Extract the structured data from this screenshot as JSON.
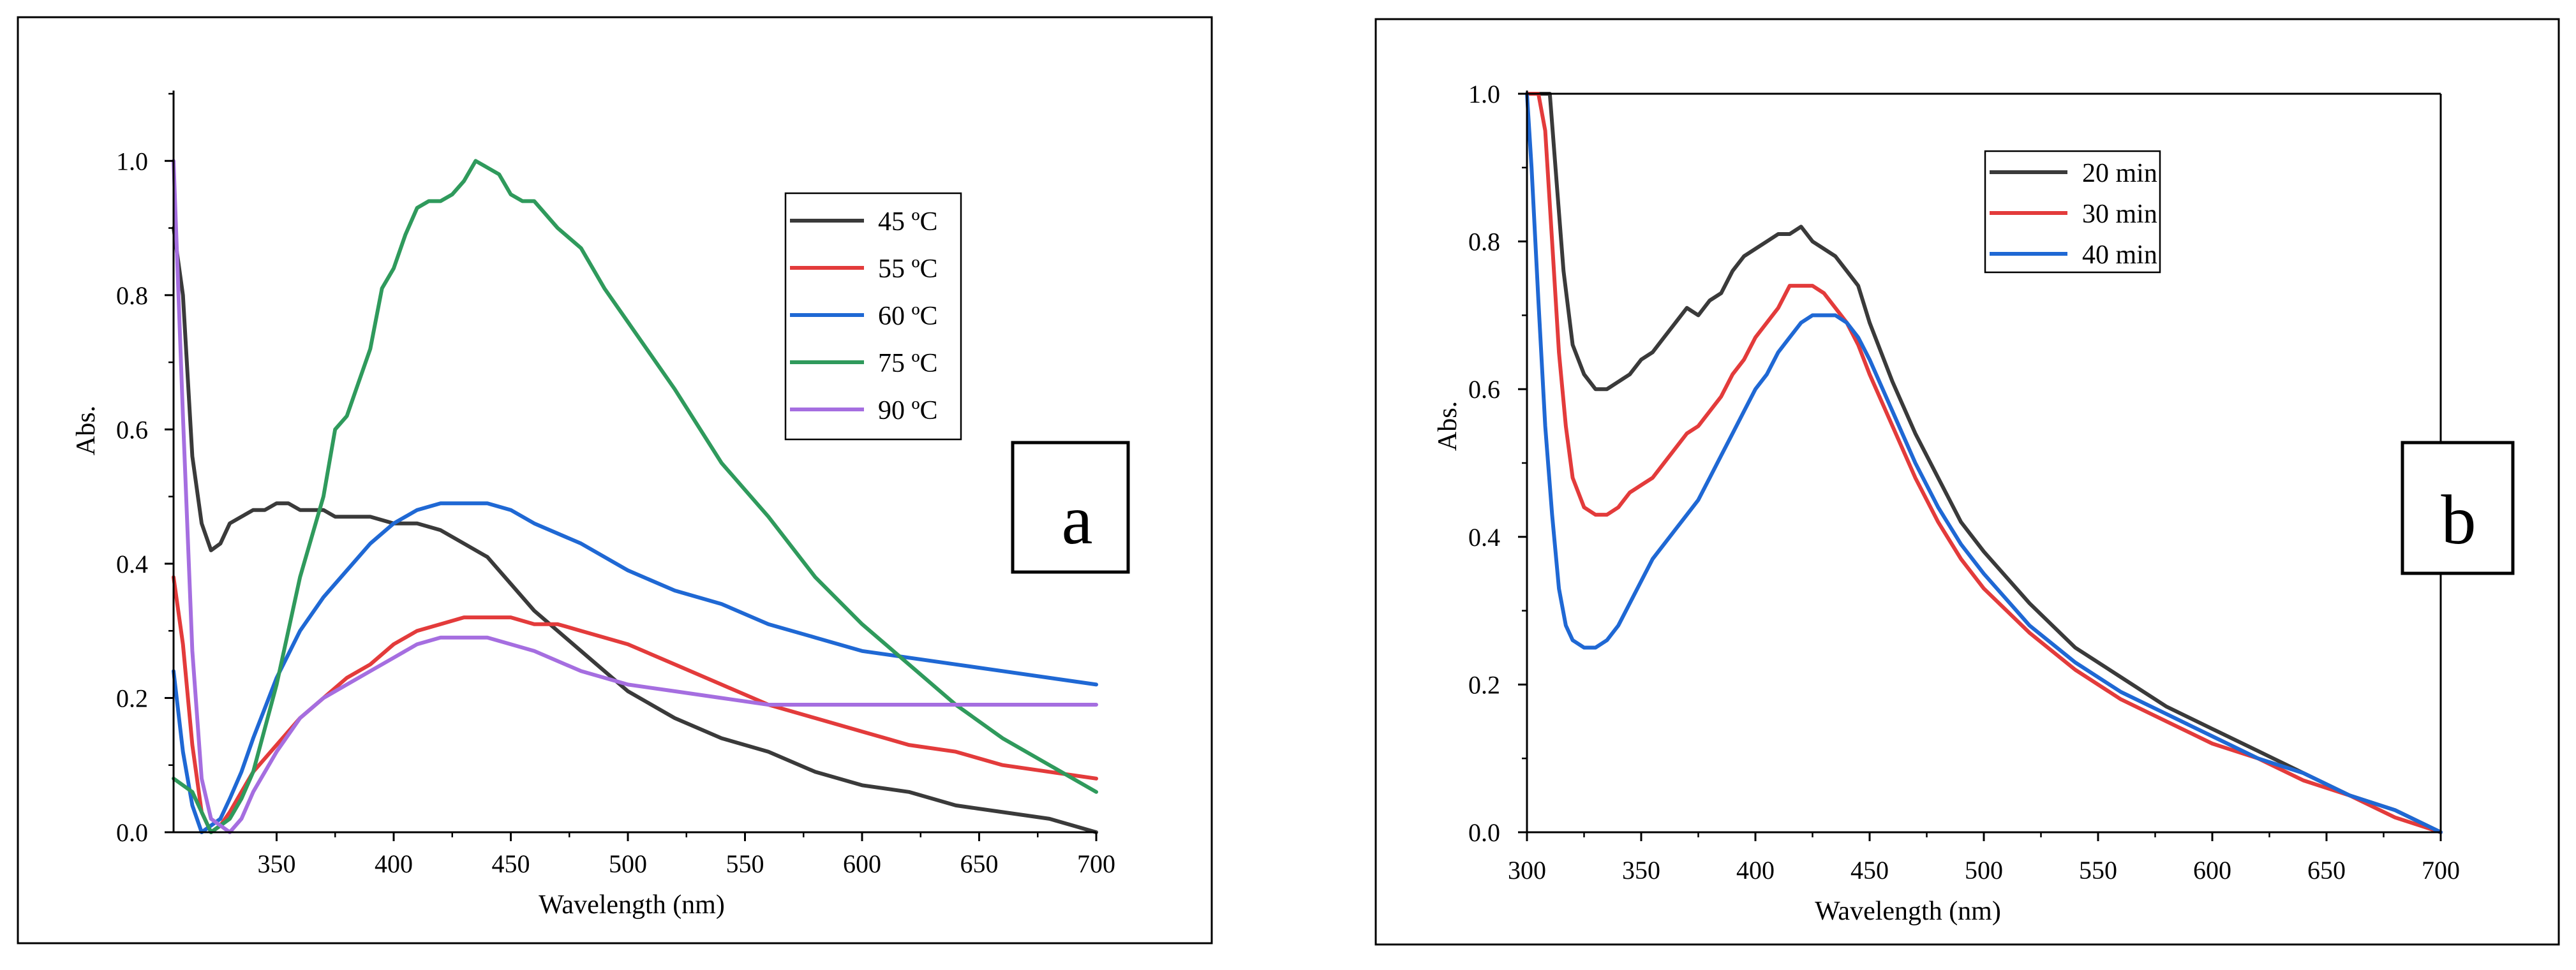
{
  "chart_data": [
    {
      "type": "line",
      "panel_label": "a",
      "xlabel": "Wavelength (nm)",
      "ylabel": "Abs.",
      "xlim": [
        306,
        700
      ],
      "ylim": [
        0,
        1.1
      ],
      "xticks": [
        350,
        400,
        450,
        500,
        550,
        600,
        650,
        700
      ],
      "yticks": [
        0.0,
        0.2,
        0.4,
        0.6,
        0.8,
        1.0
      ],
      "ytick_labels": [
        "0.0",
        "0.2",
        "0.4",
        "0.6",
        "0.8",
        "1.0"
      ],
      "legend_position": "top-right",
      "series": [
        {
          "name": "45 ºC",
          "color": "#3a3a3a",
          "x": [
            306,
            310,
            314,
            318,
            322,
            326,
            330,
            335,
            340,
            345,
            350,
            355,
            360,
            365,
            370,
            375,
            380,
            390,
            400,
            410,
            420,
            430,
            440,
            450,
            460,
            480,
            500,
            520,
            540,
            560,
            580,
            600,
            620,
            640,
            660,
            680,
            700
          ],
          "y": [
            0.9,
            0.8,
            0.56,
            0.46,
            0.42,
            0.43,
            0.46,
            0.47,
            0.48,
            0.48,
            0.49,
            0.49,
            0.48,
            0.48,
            0.48,
            0.47,
            0.47,
            0.47,
            0.46,
            0.46,
            0.45,
            0.43,
            0.41,
            0.37,
            0.33,
            0.27,
            0.21,
            0.17,
            0.14,
            0.12,
            0.09,
            0.07,
            0.06,
            0.04,
            0.03,
            0.02,
            0.0
          ]
        },
        {
          "name": "55 ºC",
          "color": "#e33b3b",
          "x": [
            306,
            310,
            314,
            318,
            322,
            326,
            330,
            335,
            340,
            350,
            360,
            370,
            380,
            390,
            400,
            410,
            420,
            430,
            440,
            450,
            460,
            470,
            480,
            500,
            520,
            540,
            560,
            580,
            600,
            620,
            640,
            660,
            680,
            700
          ],
          "y": [
            0.38,
            0.28,
            0.13,
            0.03,
            0.0,
            0.01,
            0.03,
            0.06,
            0.09,
            0.13,
            0.17,
            0.2,
            0.23,
            0.25,
            0.28,
            0.3,
            0.31,
            0.32,
            0.32,
            0.32,
            0.31,
            0.31,
            0.3,
            0.28,
            0.25,
            0.22,
            0.19,
            0.17,
            0.15,
            0.13,
            0.12,
            0.1,
            0.09,
            0.08
          ]
        },
        {
          "name": "60 ºC",
          "color": "#1f68d4",
          "x": [
            306,
            310,
            314,
            318,
            322,
            326,
            330,
            335,
            340,
            350,
            360,
            370,
            380,
            390,
            400,
            410,
            420,
            430,
            440,
            450,
            460,
            480,
            500,
            520,
            540,
            560,
            580,
            600,
            620,
            640,
            660,
            680,
            700
          ],
          "y": [
            0.24,
            0.12,
            0.04,
            0.0,
            0.01,
            0.02,
            0.05,
            0.09,
            0.14,
            0.23,
            0.3,
            0.35,
            0.39,
            0.43,
            0.46,
            0.48,
            0.49,
            0.49,
            0.49,
            0.48,
            0.46,
            0.43,
            0.39,
            0.36,
            0.34,
            0.31,
            0.29,
            0.27,
            0.26,
            0.25,
            0.24,
            0.23,
            0.22
          ]
        },
        {
          "name": "75 ºC",
          "color": "#2f9a5c",
          "x": [
            306,
            310,
            314,
            318,
            322,
            326,
            330,
            335,
            340,
            350,
            360,
            370,
            375,
            380,
            385,
            390,
            395,
            400,
            405,
            410,
            415,
            420,
            425,
            430,
            435,
            440,
            445,
            450,
            455,
            460,
            470,
            480,
            490,
            500,
            520,
            540,
            560,
            580,
            600,
            620,
            640,
            660,
            680,
            700
          ],
          "y": [
            0.08,
            0.07,
            0.06,
            0.03,
            0.0,
            0.01,
            0.02,
            0.05,
            0.09,
            0.22,
            0.38,
            0.5,
            0.6,
            0.62,
            0.67,
            0.72,
            0.81,
            0.84,
            0.89,
            0.93,
            0.94,
            0.94,
            0.95,
            0.97,
            1.0,
            0.99,
            0.98,
            0.95,
            0.94,
            0.94,
            0.9,
            0.87,
            0.81,
            0.76,
            0.66,
            0.55,
            0.47,
            0.38,
            0.31,
            0.25,
            0.19,
            0.14,
            0.1,
            0.06
          ]
        },
        {
          "name": "90 ºC",
          "color": "#a56ee0",
          "x": [
            306,
            310,
            314,
            318,
            322,
            326,
            330,
            335,
            340,
            350,
            360,
            370,
            380,
            390,
            400,
            410,
            420,
            430,
            440,
            450,
            460,
            480,
            500,
            520,
            540,
            560,
            580,
            600,
            620,
            640,
            660,
            680,
            700
          ],
          "y": [
            1.0,
            0.62,
            0.27,
            0.08,
            0.02,
            0.01,
            0.0,
            0.02,
            0.06,
            0.12,
            0.17,
            0.2,
            0.22,
            0.24,
            0.26,
            0.28,
            0.29,
            0.29,
            0.29,
            0.28,
            0.27,
            0.24,
            0.22,
            0.21,
            0.2,
            0.19,
            0.19,
            0.19,
            0.19,
            0.19,
            0.19,
            0.19,
            0.19
          ]
        }
      ]
    },
    {
      "type": "line",
      "panel_label": "b",
      "xlabel": "Wavelength (nm)",
      "ylabel": "Abs.",
      "xlim": [
        300,
        700
      ],
      "ylim": [
        0,
        1.0
      ],
      "xticks": [
        300,
        350,
        400,
        450,
        500,
        550,
        600,
        650,
        700
      ],
      "yticks": [
        0.0,
        0.2,
        0.4,
        0.6,
        0.8,
        1.0
      ],
      "ytick_labels": [
        "0.0",
        "0.2",
        "0.4",
        "0.6",
        "0.8",
        "1.0"
      ],
      "legend_position": "top-center",
      "series": [
        {
          "name": "20 min",
          "color": "#3a3a3a",
          "x": [
            300,
            305,
            310,
            313,
            316,
            320,
            325,
            330,
            335,
            340,
            345,
            350,
            355,
            360,
            365,
            370,
            375,
            380,
            385,
            390,
            395,
            400,
            405,
            410,
            415,
            420,
            425,
            430,
            435,
            440,
            445,
            450,
            460,
            470,
            480,
            490,
            500,
            520,
            540,
            560,
            580,
            600,
            620,
            640,
            660,
            680,
            700
          ],
          "y": [
            1.0,
            1.0,
            1.0,
            0.88,
            0.76,
            0.66,
            0.62,
            0.6,
            0.6,
            0.61,
            0.62,
            0.64,
            0.65,
            0.67,
            0.69,
            0.71,
            0.7,
            0.72,
            0.73,
            0.76,
            0.78,
            0.79,
            0.8,
            0.81,
            0.81,
            0.82,
            0.8,
            0.79,
            0.78,
            0.76,
            0.74,
            0.69,
            0.61,
            0.54,
            0.48,
            0.42,
            0.38,
            0.31,
            0.25,
            0.21,
            0.17,
            0.14,
            0.11,
            0.08,
            0.05,
            0.03,
            0.0
          ]
        },
        {
          "name": "30 min",
          "color": "#e33b3b",
          "x": [
            300,
            305,
            308,
            311,
            314,
            317,
            320,
            325,
            330,
            335,
            340,
            345,
            350,
            355,
            360,
            365,
            370,
            375,
            380,
            385,
            390,
            395,
            400,
            405,
            410,
            415,
            420,
            425,
            430,
            435,
            440,
            445,
            450,
            460,
            470,
            480,
            490,
            500,
            520,
            540,
            560,
            580,
            600,
            620,
            640,
            660,
            680,
            700
          ],
          "y": [
            1.0,
            1.0,
            0.95,
            0.8,
            0.65,
            0.55,
            0.48,
            0.44,
            0.43,
            0.43,
            0.44,
            0.46,
            0.47,
            0.48,
            0.5,
            0.52,
            0.54,
            0.55,
            0.57,
            0.59,
            0.62,
            0.64,
            0.67,
            0.69,
            0.71,
            0.74,
            0.74,
            0.74,
            0.73,
            0.71,
            0.69,
            0.66,
            0.62,
            0.55,
            0.48,
            0.42,
            0.37,
            0.33,
            0.27,
            0.22,
            0.18,
            0.15,
            0.12,
            0.1,
            0.07,
            0.05,
            0.02,
            0.0
          ]
        },
        {
          "name": "40 min",
          "color": "#1f68d4",
          "x": [
            300,
            302,
            305,
            308,
            311,
            314,
            317,
            320,
            325,
            330,
            335,
            340,
            345,
            350,
            355,
            360,
            365,
            370,
            375,
            380,
            385,
            390,
            395,
            400,
            405,
            410,
            415,
            420,
            425,
            430,
            435,
            440,
            445,
            450,
            460,
            470,
            480,
            490,
            500,
            520,
            540,
            560,
            580,
            600,
            620,
            640,
            660,
            680,
            700
          ],
          "y": [
            1.0,
            0.9,
            0.72,
            0.55,
            0.43,
            0.33,
            0.28,
            0.26,
            0.25,
            0.25,
            0.26,
            0.28,
            0.31,
            0.34,
            0.37,
            0.39,
            0.41,
            0.43,
            0.45,
            0.48,
            0.51,
            0.54,
            0.57,
            0.6,
            0.62,
            0.65,
            0.67,
            0.69,
            0.7,
            0.7,
            0.7,
            0.69,
            0.67,
            0.64,
            0.57,
            0.5,
            0.44,
            0.39,
            0.35,
            0.28,
            0.23,
            0.19,
            0.16,
            0.13,
            0.1,
            0.08,
            0.05,
            0.03,
            0.0
          ]
        }
      ]
    }
  ]
}
